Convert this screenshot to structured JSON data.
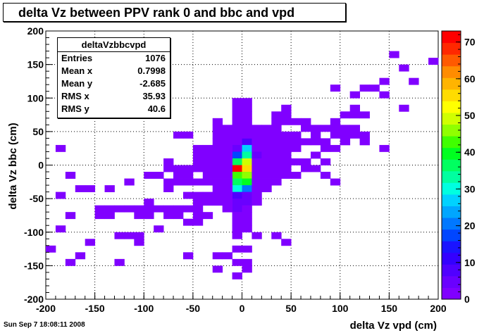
{
  "chart_data": {
    "type": "heatmap",
    "title": "delta Vz between PPV rank 0 and bbc and vpd",
    "xlabel": "delta Vz vpd (cm)",
    "ylabel": "delta Vz bbc (cm)",
    "xlim": [
      -200,
      200
    ],
    "ylim": [
      -200,
      200
    ],
    "x_ticks": [
      "-200",
      "-150",
      "-100",
      "-50",
      "0",
      "50",
      "100",
      "150",
      "200"
    ],
    "y_ticks": [
      "-200",
      "-150",
      "-100",
      "-50",
      "0",
      "50",
      "100",
      "150",
      "200"
    ],
    "color_ticks": [
      "0",
      "10",
      "20",
      "30",
      "40",
      "50",
      "60",
      "70"
    ],
    "zlim": [
      0,
      73
    ],
    "grid": true,
    "bin_width": [
      10,
      10
    ],
    "stats": {
      "name": "deltaVzbbcvpd",
      "entries_label": "Entries",
      "entries": "1076",
      "meanx_label": "Mean x",
      "meanx": "0.7998",
      "meany_label": "Mean y",
      "meany": "-2.685",
      "rmsx_label": "RMS x",
      "rmsx": "35.93",
      "rmsy_label": "RMS y",
      "rmsy": "40.6"
    },
    "bins": [
      [
        -5,
        35,
        3
      ],
      [
        -5,
        25,
        6
      ],
      [
        -5,
        15,
        16
      ],
      [
        -5,
        5,
        35
      ],
      [
        -5,
        -5,
        72
      ],
      [
        -5,
        -15,
        44
      ],
      [
        -5,
        -25,
        38
      ],
      [
        -5,
        -35,
        30
      ],
      [
        -5,
        -45,
        8
      ],
      [
        -5,
        -55,
        6
      ],
      [
        -5,
        -65,
        5
      ],
      [
        -5,
        -75,
        3
      ],
      [
        -5,
        -85,
        1
      ],
      [
        5,
        35,
        8
      ],
      [
        5,
        25,
        28
      ],
      [
        5,
        15,
        34
      ],
      [
        5,
        5,
        48
      ],
      [
        5,
        -5,
        55
      ],
      [
        5,
        -15,
        46
      ],
      [
        5,
        -25,
        40
      ],
      [
        5,
        -35,
        22
      ],
      [
        5,
        -45,
        5
      ],
      [
        5,
        -55,
        4
      ],
      [
        5,
        -65,
        3
      ],
      [
        5,
        -75,
        1
      ],
      [
        5,
        -85,
        1
      ],
      [
        -15,
        55,
        1
      ],
      [
        -15,
        45,
        2
      ],
      [
        -15,
        35,
        2
      ],
      [
        -15,
        25,
        3
      ],
      [
        -15,
        15,
        2
      ],
      [
        -15,
        5,
        3
      ],
      [
        -15,
        -5,
        2
      ],
      [
        -15,
        -15,
        3
      ],
      [
        -15,
        -25,
        2
      ],
      [
        -15,
        -35,
        2
      ],
      [
        -15,
        -45,
        1
      ],
      [
        -15,
        -55,
        2
      ],
      [
        -15,
        -65,
        1
      ],
      [
        15,
        55,
        1
      ],
      [
        15,
        45,
        3
      ],
      [
        15,
        35,
        2
      ],
      [
        15,
        25,
        3
      ],
      [
        15,
        15,
        4
      ],
      [
        15,
        5,
        3
      ],
      [
        15,
        -5,
        3
      ],
      [
        15,
        -15,
        2
      ],
      [
        15,
        -25,
        2
      ],
      [
        15,
        -35,
        2
      ],
      [
        15,
        -45,
        1
      ],
      [
        15,
        -55,
        1
      ],
      [
        -5,
        95,
        1
      ],
      [
        5,
        95,
        1
      ],
      [
        5,
        85,
        2
      ],
      [
        -5,
        85,
        1
      ],
      [
        5,
        75,
        1
      ],
      [
        -5,
        75,
        2
      ],
      [
        -5,
        65,
        1
      ],
      [
        5,
        65,
        2
      ],
      [
        -5,
        55,
        1
      ],
      [
        5,
        55,
        2
      ],
      [
        -5,
        45,
        3
      ],
      [
        5,
        45,
        3
      ],
      [
        25,
        55,
        1
      ],
      [
        25,
        45,
        1
      ],
      [
        25,
        35,
        2
      ],
      [
        25,
        25,
        2
      ],
      [
        25,
        15,
        2
      ],
      [
        25,
        5,
        2
      ],
      [
        25,
        -5,
        1
      ],
      [
        25,
        -15,
        1
      ],
      [
        25,
        -25,
        2
      ],
      [
        25,
        -35,
        1
      ],
      [
        35,
        75,
        1
      ],
      [
        35,
        65,
        1
      ],
      [
        35,
        55,
        1
      ],
      [
        35,
        45,
        1
      ],
      [
        35,
        35,
        1
      ],
      [
        35,
        25,
        1
      ],
      [
        35,
        15,
        1
      ],
      [
        35,
        5,
        1
      ],
      [
        35,
        -5,
        1
      ],
      [
        35,
        -15,
        1
      ],
      [
        35,
        -25,
        1
      ],
      [
        45,
        85,
        1
      ],
      [
        45,
        75,
        1
      ],
      [
        45,
        65,
        1
      ],
      [
        45,
        45,
        1
      ],
      [
        45,
        35,
        1
      ],
      [
        45,
        25,
        1
      ],
      [
        45,
        15,
        1
      ],
      [
        45,
        5,
        1
      ],
      [
        45,
        -5,
        1
      ],
      [
        45,
        -15,
        1
      ],
      [
        55,
        65,
        1
      ],
      [
        55,
        45,
        1
      ],
      [
        55,
        35,
        1
      ],
      [
        55,
        25,
        1
      ],
      [
        55,
        5,
        1
      ],
      [
        55,
        -15,
        1
      ],
      [
        65,
        65,
        1
      ],
      [
        65,
        55,
        1
      ],
      [
        65,
        35,
        1
      ],
      [
        65,
        -5,
        1
      ],
      [
        65,
        5,
        1
      ],
      [
        75,
        55,
        1
      ],
      [
        75,
        45,
        1
      ],
      [
        75,
        35,
        1
      ],
      [
        75,
        15,
        1
      ],
      [
        75,
        -5,
        1
      ],
      [
        85,
        55,
        1
      ],
      [
        85,
        35,
        1
      ],
      [
        85,
        25,
        1
      ],
      [
        85,
        5,
        1
      ],
      [
        85,
        -15,
        1
      ],
      [
        95,
        65,
        1
      ],
      [
        95,
        55,
        1
      ],
      [
        95,
        45,
        1
      ],
      [
        95,
        25,
        1
      ],
      [
        95,
        -25,
        1
      ],
      [
        105,
        75,
        1
      ],
      [
        105,
        55,
        1
      ],
      [
        105,
        45,
        1
      ],
      [
        105,
        35,
        1
      ],
      [
        115,
        85,
        1
      ],
      [
        115,
        75,
        1
      ],
      [
        115,
        55,
        1
      ],
      [
        115,
        45,
        1
      ],
      [
        125,
        115,
        1
      ],
      [
        125,
        75,
        1
      ],
      [
        125,
        45,
        1
      ],
      [
        145,
        125,
        1
      ],
      [
        145,
        25,
        1
      ],
      [
        155,
        165,
        1
      ],
      [
        165,
        145,
        1
      ],
      [
        165,
        85,
        1
      ],
      [
        175,
        125,
        1
      ],
      [
        195,
        155,
        1
      ],
      [
        95,
        115,
        1
      ],
      [
        115,
        105,
        1
      ],
      [
        135,
        115,
        1
      ],
      [
        145,
        105,
        1
      ],
      [
        125,
        35,
        1
      ],
      [
        -25,
        65,
        1
      ],
      [
        -25,
        55,
        1
      ],
      [
        -25,
        45,
        1
      ],
      [
        -25,
        35,
        1
      ],
      [
        -25,
        25,
        2
      ],
      [
        -25,
        15,
        2
      ],
      [
        -25,
        5,
        1
      ],
      [
        -25,
        -5,
        2
      ],
      [
        -25,
        -15,
        1
      ],
      [
        -25,
        -25,
        1
      ],
      [
        -25,
        -35,
        1
      ],
      [
        -25,
        -45,
        1
      ],
      [
        -25,
        -55,
        1
      ],
      [
        -35,
        25,
        1
      ],
      [
        -35,
        15,
        1
      ],
      [
        -35,
        5,
        1
      ],
      [
        -35,
        -5,
        2
      ],
      [
        -35,
        -15,
        1
      ],
      [
        -35,
        -25,
        1
      ],
      [
        -35,
        -45,
        1
      ],
      [
        -35,
        -55,
        1
      ],
      [
        -35,
        -75,
        1
      ],
      [
        -45,
        25,
        1
      ],
      [
        -45,
        15,
        1
      ],
      [
        -45,
        5,
        1
      ],
      [
        -45,
        -5,
        1
      ],
      [
        -45,
        -25,
        1
      ],
      [
        -45,
        -45,
        1
      ],
      [
        -45,
        -55,
        1
      ],
      [
        -45,
        -65,
        1
      ],
      [
        -45,
        -75,
        1
      ],
      [
        -55,
        45,
        1
      ],
      [
        -55,
        -5,
        1
      ],
      [
        -55,
        -15,
        1
      ],
      [
        -55,
        -25,
        1
      ],
      [
        -55,
        -45,
        1
      ],
      [
        -55,
        -65,
        1
      ],
      [
        -55,
        -85,
        1
      ],
      [
        -55,
        -135,
        1
      ],
      [
        -65,
        45,
        1
      ],
      [
        -65,
        -5,
        1
      ],
      [
        -65,
        -15,
        1
      ],
      [
        -65,
        -25,
        1
      ],
      [
        -65,
        -65,
        1
      ],
      [
        -65,
        -75,
        1
      ],
      [
        -75,
        5,
        1
      ],
      [
        -75,
        -5,
        1
      ],
      [
        -75,
        -25,
        1
      ],
      [
        -75,
        -35,
        1
      ],
      [
        -75,
        -65,
        1
      ],
      [
        -75,
        -75,
        1
      ],
      [
        -85,
        -65,
        1
      ],
      [
        -85,
        -95,
        1
      ],
      [
        -95,
        -15,
        1
      ],
      [
        -95,
        -55,
        1
      ],
      [
        -95,
        -65,
        1
      ],
      [
        -95,
        -75,
        1
      ],
      [
        -105,
        -65,
        1
      ],
      [
        -105,
        -75,
        1
      ],
      [
        -105,
        -105,
        1
      ],
      [
        -105,
        -115,
        1
      ],
      [
        -115,
        -25,
        1
      ],
      [
        -115,
        -105,
        1
      ],
      [
        -125,
        -65,
        1
      ],
      [
        -125,
        -105,
        1
      ],
      [
        -125,
        -145,
        1
      ],
      [
        -135,
        -35,
        1
      ],
      [
        -135,
        -65,
        1
      ],
      [
        -135,
        -75,
        1
      ],
      [
        -145,
        -65,
        1
      ],
      [
        -145,
        -75,
        1
      ],
      [
        -155,
        -115,
        1
      ],
      [
        -155,
        -35,
        1
      ],
      [
        -165,
        -35,
        1
      ],
      [
        -165,
        -135,
        1
      ],
      [
        -175,
        -15,
        1
      ],
      [
        -175,
        -75,
        1
      ],
      [
        -175,
        -145,
        1
      ],
      [
        -185,
        25,
        1
      ],
      [
        -185,
        -45,
        1
      ],
      [
        -185,
        -95,
        1
      ],
      [
        -195,
        -125,
        1
      ],
      [
        -85,
        -15,
        1
      ],
      [
        -115,
        -65,
        1
      ],
      [
        -45,
        -85,
        1
      ],
      [
        -5,
        -95,
        1
      ],
      [
        5,
        -95,
        1
      ],
      [
        -5,
        -105,
        1
      ],
      [
        15,
        -105,
        1
      ],
      [
        -5,
        -125,
        1
      ],
      [
        5,
        -125,
        1
      ],
      [
        -25,
        -135,
        1
      ],
      [
        -5,
        -145,
        1
      ],
      [
        5,
        -145,
        1
      ],
      [
        -25,
        -155,
        1
      ],
      [
        5,
        -155,
        1
      ],
      [
        -5,
        -165,
        1
      ],
      [
        35,
        -105,
        1
      ],
      [
        45,
        -115,
        1
      ],
      [
        -15,
        -135,
        1
      ],
      [
        -35,
        -5,
        1
      ]
    ]
  },
  "timestamp": "Sun Sep  7 18:08:11 2008"
}
